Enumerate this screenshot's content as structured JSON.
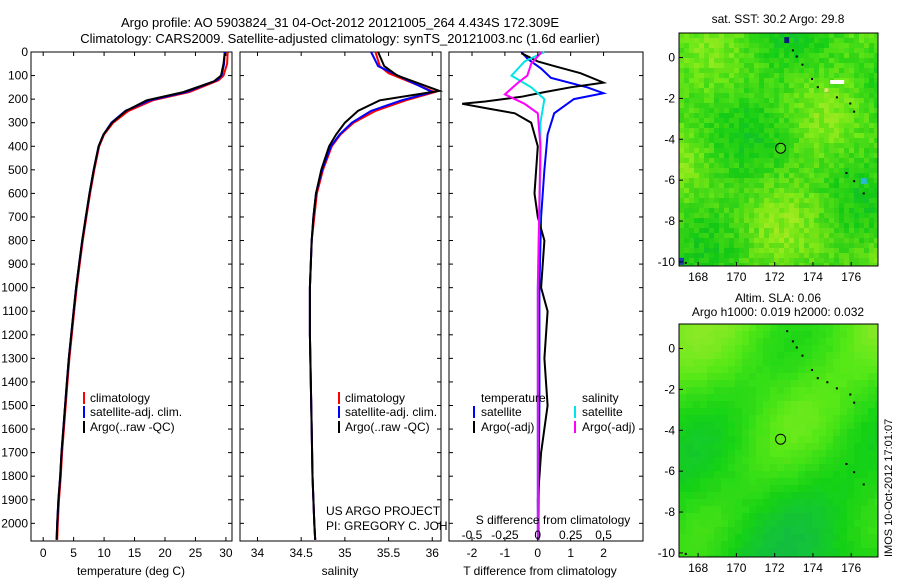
{
  "title_line1": "Argo profile: AO 5903824_31 04-Oct-2012 20121005_264 4.434S 172.309E",
  "title_line2": "Climatology: CARS2009. Satellite-adjusted climatology: synTS_20121003.nc (1.6d earlier)",
  "colors": {
    "climatology": "#ff0000",
    "satellite": "#0000ff",
    "argo": "#000000",
    "salinity_sat": "#00e5e5",
    "salinity_argo": "#ff00ff"
  },
  "chart_data": [
    {
      "type": "line",
      "xlabel": "temperature (deg C)",
      "xlim": [
        -2,
        31
      ],
      "ylim": [
        2075,
        0
      ],
      "xticks": [
        0,
        5,
        10,
        15,
        20,
        25,
        30
      ],
      "yticks": [
        0,
        100,
        200,
        300,
        400,
        500,
        600,
        700,
        800,
        900,
        1000,
        1100,
        1200,
        1300,
        1400,
        1500,
        1600,
        1700,
        1800,
        1900,
        2000
      ],
      "legend": [
        "climatology",
        "satellite-adj. clim.",
        "Argo(..raw -QC)"
      ],
      "series": [
        {
          "name": "climatology",
          "points": [
            [
              30.3,
              0
            ],
            [
              30.2,
              50
            ],
            [
              29.6,
              100
            ],
            [
              28.8,
              120
            ],
            [
              24,
              170
            ],
            [
              18,
              205
            ],
            [
              14,
              250
            ],
            [
              11.5,
              300
            ],
            [
              10,
              350
            ],
            [
              9.2,
              400
            ],
            [
              8.4,
              500
            ],
            [
              7.7,
              600
            ],
            [
              7.1,
              700
            ],
            [
              6.5,
              800
            ],
            [
              6,
              900
            ],
            [
              5.5,
              1000
            ],
            [
              5.1,
              1100
            ],
            [
              4.7,
              1200
            ],
            [
              4.3,
              1300
            ],
            [
              4,
              1400
            ],
            [
              3.7,
              1500
            ],
            [
              3.4,
              1600
            ],
            [
              3.1,
              1700
            ],
            [
              2.9,
              1800
            ],
            [
              2.6,
              1900
            ],
            [
              2.4,
              2000
            ],
            [
              2.3,
              2070
            ]
          ]
        },
        {
          "name": "satellite-adj. clim.",
          "points": [
            [
              29.8,
              0
            ],
            [
              29.7,
              50
            ],
            [
              29.3,
              100
            ],
            [
              28.5,
              120
            ],
            [
              23.5,
              170
            ],
            [
              17.5,
              205
            ],
            [
              13.5,
              250
            ],
            [
              11.2,
              300
            ],
            [
              9.9,
              350
            ],
            [
              9.1,
              400
            ],
            [
              8.3,
              500
            ],
            [
              7.6,
              600
            ],
            [
              7,
              700
            ],
            [
              6.4,
              800
            ],
            [
              5.9,
              900
            ],
            [
              5.4,
              1000
            ],
            [
              5,
              1100
            ],
            [
              4.6,
              1200
            ],
            [
              4.2,
              1300
            ],
            [
              3.9,
              1400
            ],
            [
              3.6,
              1500
            ],
            [
              3.3,
              1600
            ],
            [
              3,
              1700
            ],
            [
              2.8,
              1800
            ],
            [
              2.5,
              1900
            ],
            [
              2.3,
              2000
            ],
            [
              2.2,
              2070
            ]
          ]
        },
        {
          "name": "Argo(..raw -QC)",
          "points": [
            [
              29.8,
              5
            ],
            [
              29.6,
              50
            ],
            [
              29.2,
              100
            ],
            [
              28,
              125
            ],
            [
              23,
              170
            ],
            [
              17,
              205
            ],
            [
              13.6,
              250
            ],
            [
              11.3,
              300
            ],
            [
              9.9,
              350
            ],
            [
              9.1,
              400
            ],
            [
              8.3,
              500
            ],
            [
              7.6,
              600
            ],
            [
              7,
              700
            ],
            [
              6.4,
              800
            ],
            [
              5.9,
              900
            ],
            [
              5.4,
              1000
            ],
            [
              5,
              1100
            ],
            [
              4.6,
              1200
            ],
            [
              4.2,
              1300
            ],
            [
              3.9,
              1400
            ],
            [
              3.6,
              1500
            ],
            [
              3.3,
              1600
            ],
            [
              3,
              1700
            ],
            [
              2.8,
              1800
            ],
            [
              2.5,
              1900
            ],
            [
              2.3,
              2000
            ],
            [
              2.2,
              2070
            ]
          ]
        }
      ]
    },
    {
      "type": "line",
      "xlabel": "salinity",
      "xlim": [
        33.8,
        36.1
      ],
      "ylim": [
        2075,
        0
      ],
      "xticks": [
        34,
        34.5,
        35,
        35.5,
        36
      ],
      "legend": [
        "climatology",
        "satellite-adj. clim.",
        "Argo(..raw -QC)"
      ],
      "series": [
        {
          "name": "climatology",
          "points": [
            [
              35.35,
              0
            ],
            [
              35.4,
              60
            ],
            [
              35.5,
              90
            ],
            [
              36.03,
              170
            ],
            [
              35.7,
              205
            ],
            [
              35.35,
              250
            ],
            [
              35.1,
              300
            ],
            [
              34.95,
              350
            ],
            [
              34.85,
              400
            ],
            [
              34.75,
              500
            ],
            [
              34.68,
              600
            ],
            [
              34.65,
              700
            ],
            [
              34.62,
              800
            ],
            [
              34.61,
              900
            ],
            [
              34.6,
              1000
            ],
            [
              34.6,
              1200
            ],
            [
              34.61,
              1400
            ],
            [
              34.62,
              1600
            ],
            [
              34.63,
              1800
            ],
            [
              34.65,
              2000
            ],
            [
              34.66,
              2070
            ]
          ]
        },
        {
          "name": "satellite-adj. clim.",
          "points": [
            [
              35.3,
              0
            ],
            [
              35.38,
              60
            ],
            [
              35.55,
              90
            ],
            [
              36.0,
              170
            ],
            [
              35.65,
              205
            ],
            [
              35.3,
              250
            ],
            [
              35.08,
              300
            ],
            [
              34.94,
              350
            ],
            [
              34.84,
              400
            ],
            [
              34.74,
              500
            ],
            [
              34.67,
              600
            ],
            [
              34.64,
              700
            ],
            [
              34.62,
              800
            ],
            [
              34.61,
              900
            ],
            [
              34.6,
              1000
            ],
            [
              34.6,
              1200
            ],
            [
              34.61,
              1400
            ],
            [
              34.62,
              1600
            ],
            [
              34.63,
              1800
            ],
            [
              34.65,
              2000
            ],
            [
              34.66,
              2070
            ]
          ]
        },
        {
          "name": "Argo(..raw -QC)",
          "points": [
            [
              35.38,
              0
            ],
            [
              35.45,
              60
            ],
            [
              35.6,
              100
            ],
            [
              36.08,
              165
            ],
            [
              35.4,
              205
            ],
            [
              35.15,
              250
            ],
            [
              35.0,
              300
            ],
            [
              34.9,
              350
            ],
            [
              34.82,
              400
            ],
            [
              34.73,
              500
            ],
            [
              34.67,
              600
            ],
            [
              34.64,
              700
            ],
            [
              34.62,
              800
            ],
            [
              34.61,
              900
            ],
            [
              34.6,
              1000
            ],
            [
              34.6,
              1200
            ],
            [
              34.61,
              1400
            ],
            [
              34.62,
              1600
            ],
            [
              34.63,
              1800
            ],
            [
              34.65,
              2000
            ],
            [
              34.66,
              2070
            ]
          ]
        }
      ],
      "annotation_line1": "US ARGO PROJECT",
      "annotation_line2": "PI: GREGORY C. JOHNSON"
    },
    {
      "type": "line",
      "xlabel": "T difference from climatology",
      "xlabel_top": "S difference from climatology",
      "xlim": [
        -2.7,
        3.2
      ],
      "ylim": [
        2075,
        0
      ],
      "xticks": [
        -2,
        -1,
        0,
        1,
        2
      ],
      "sticks": [
        -0.5,
        -0.25,
        0,
        0.25,
        0.5
      ],
      "slim": [
        -0.675,
        0.8
      ],
      "legend_temperature": "temperature",
      "legend_salinity": "salinity",
      "legend_entries": [
        "satellite",
        "Argo(-adj)",
        "satellite",
        "Argo(-adj)"
      ],
      "series": [
        {
          "name": "temperature satellite",
          "points": [
            [
              -0.5,
              0
            ],
            [
              -0.3,
              30
            ],
            [
              0.1,
              70
            ],
            [
              0.4,
              110
            ],
            [
              1.5,
              150
            ],
            [
              2.0,
              175
            ],
            [
              1.1,
              200
            ],
            [
              0.5,
              260
            ],
            [
              0.3,
              350
            ],
            [
              0.2,
              500
            ],
            [
              0.1,
              700
            ],
            [
              0.05,
              1000
            ],
            [
              0.05,
              1500
            ],
            [
              0.02,
              2000
            ],
            [
              0.02,
              2070
            ]
          ]
        },
        {
          "name": "temperature Argo(-adj)",
          "points": [
            [
              -0.5,
              5
            ],
            [
              0,
              40
            ],
            [
              0.5,
              60
            ],
            [
              1.3,
              90
            ],
            [
              2,
              130
            ],
            [
              1,
              150
            ],
            [
              0.2,
              170
            ],
            [
              -0.5,
              190
            ],
            [
              -1.6,
              210
            ],
            [
              -2.3,
              220
            ],
            [
              -1.5,
              240
            ],
            [
              -0.7,
              260
            ],
            [
              -0.2,
              300
            ],
            [
              0,
              400
            ],
            [
              -0.1,
              600
            ],
            [
              0,
              700
            ],
            [
              0.2,
              800
            ],
            [
              0.1,
              1000
            ],
            [
              0.3,
              1100
            ],
            [
              0.2,
              1300
            ],
            [
              0.3,
              1500
            ],
            [
              0.1,
              1700
            ],
            [
              0,
              1900
            ],
            [
              0.02,
              2070
            ]
          ]
        },
        {
          "name": "salinity satellite",
          "points": [
            [
              0.05,
              0
            ],
            [
              -0.1,
              40
            ],
            [
              -0.2,
              100
            ],
            [
              -0.05,
              150
            ],
            [
              0.05,
              200
            ],
            [
              0.02,
              300
            ],
            [
              0.02,
              500
            ],
            [
              0,
              1000
            ],
            [
              0,
              2070
            ]
          ]
        },
        {
          "name": "salinity Argo(-adj)",
          "points": [
            [
              0.03,
              0
            ],
            [
              -0.05,
              50
            ],
            [
              -0.08,
              100
            ],
            [
              -0.15,
              130
            ],
            [
              -0.25,
              180
            ],
            [
              -0.1,
              220
            ],
            [
              0,
              260
            ],
            [
              0.02,
              400
            ],
            [
              0,
              1000
            ],
            [
              0,
              2070
            ]
          ]
        }
      ]
    },
    {
      "type": "heatmap",
      "title": "sat. SST: 30.2  Argo: 29.8",
      "xlim": [
        167,
        177.4
      ],
      "ylim": [
        -10.2,
        1.2
      ],
      "xticks": [
        168,
        170,
        172,
        174,
        176
      ],
      "yticks": [
        0,
        -2,
        -4,
        -6,
        -8,
        -10
      ],
      "marker": {
        "lon": 172.309,
        "lat": -4.434
      }
    },
    {
      "type": "heatmap",
      "title_line1": "Altim. SLA: 0.06",
      "title_line2": "Argo h1000: 0.019 h2000: 0.032",
      "xlim": [
        167,
        177.4
      ],
      "ylim": [
        -10.2,
        1.2
      ],
      "xticks": [
        168,
        170,
        172,
        174,
        176
      ],
      "yticks": [
        0,
        -2,
        -4,
        -6,
        -8,
        -10
      ],
      "marker": {
        "lon": 172.309,
        "lat": -4.434
      }
    }
  ],
  "footer": "IMOS 10-Oct-2012 17:01:07"
}
